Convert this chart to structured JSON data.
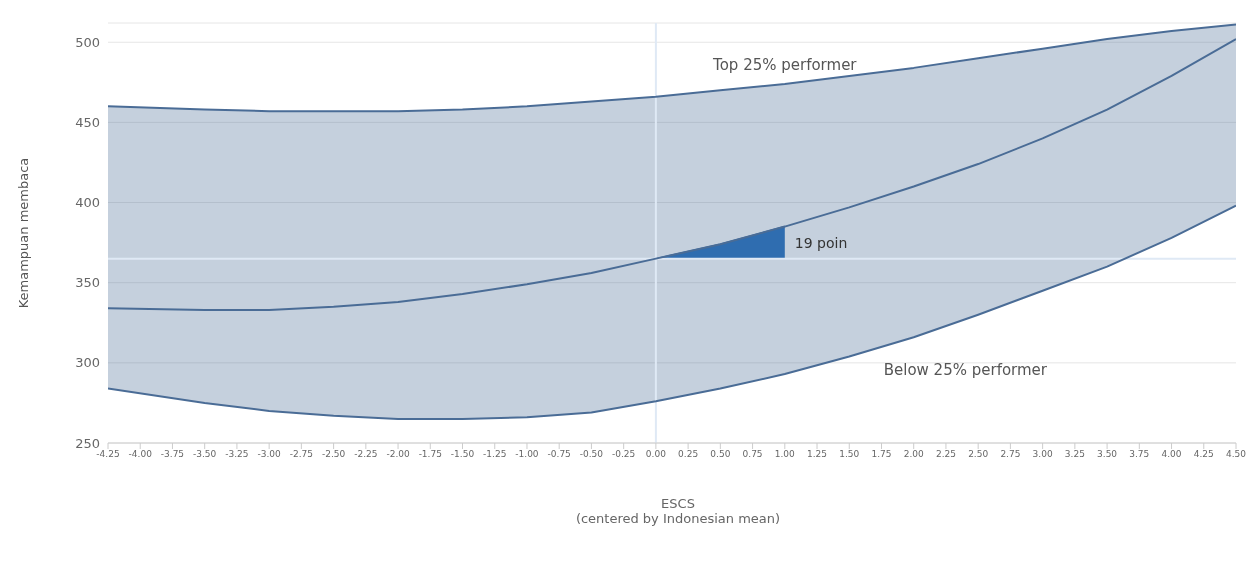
{
  "chart_data": {
    "type": "line",
    "xlabel": "ESCS\n(centered by Indonesian mean)",
    "ylabel": "Kemampuan membaca",
    "x": [
      -4.25,
      -3.5,
      -3,
      -2.5,
      -2,
      -1.5,
      -1,
      -0.5,
      0,
      0.5,
      1,
      1.5,
      2,
      2.5,
      3,
      3.5,
      4,
      4.5
    ],
    "series": [
      {
        "name": "Top 25% performer",
        "color": "#4a6c96",
        "values": [
          460,
          458,
          457,
          457,
          457,
          458,
          460,
          463,
          466,
          470,
          474,
          479,
          484,
          490,
          496,
          502,
          507,
          511
        ]
      },
      {
        "name": "Below 25% performer",
        "color": "#4a6c96",
        "values": [
          284,
          275,
          270,
          267,
          265,
          265,
          266,
          269,
          276,
          284,
          293,
          304,
          316,
          330,
          345,
          360,
          378,
          398
        ]
      },
      {
        "color": "#4a6c96",
        "values": [
          334,
          333,
          333,
          335,
          338,
          343,
          349,
          356,
          365,
          374,
          385,
          397,
          410,
          424,
          440,
          458,
          479,
          502
        ],
        "lower": [
          284,
          275,
          270,
          267,
          265,
          265,
          266,
          269,
          276,
          284,
          293,
          304,
          316,
          330,
          345,
          360,
          378,
          398
        ],
        "upper": [
          460,
          458,
          457,
          457,
          457,
          458,
          460,
          463,
          466,
          470,
          474,
          479,
          484,
          490,
          496,
          502,
          507,
          511
        ]
      },
      {
        "type": "area",
        "color": "#2f6db0",
        "x": [
          0,
          0.5,
          1
        ],
        "values": [
          365,
          374,
          385
        ]
      }
    ],
    "annotations": [
      {
        "text": "19 poin",
        "x": 1,
        "y": 375
      }
    ],
    "ref_lines": [
      {
        "axis": "y",
        "value": 365,
        "color": "#dfe9f5"
      },
      {
        "axis": "x",
        "value": 0,
        "color": "#dfe9f5"
      }
    ],
    "xlim": [
      -4.25,
      4.5
    ],
    "xticks": [
      -4.25,
      {
        "value": -4,
        "label": "-4.00"
      },
      -3.75,
      {
        "value": -3.5,
        "label": "-3.50"
      },
      -3.25,
      {
        "value": -3,
        "label": "-3.00"
      },
      -2.75,
      {
        "value": -2.5,
        "label": "-2.50"
      },
      -2.25,
      {
        "value": -2,
        "label": "-2.00"
      },
      -1.75,
      {
        "value": -1.5,
        "label": "-1.50"
      },
      -1.25,
      {
        "value": -1,
        "label": "-1.00"
      },
      -0.75,
      {
        "value": -0.5,
        "label": "-0.50"
      },
      -0.25,
      {
        "value": 0,
        "label": "0.00"
      },
      0.25,
      {
        "value": 0.5,
        "label": "0.50"
      },
      0.75,
      {
        "value": 1,
        "label": "1.00"
      },
      1.25,
      {
        "value": 1.5,
        "label": "1.50"
      },
      1.75,
      {
        "value": 2,
        "label": "2.00"
      },
      2.25,
      {
        "value": 2.5,
        "label": "2.50"
      },
      2.75,
      {
        "value": 3,
        "label": "3.00"
      },
      3.25,
      {
        "value": 3.5,
        "label": "3.50"
      },
      3.75,
      {
        "value": 4,
        "label": "4.00"
      },
      4.25,
      {
        "value": 4.5,
        "label": "4.50"
      }
    ],
    "ylim": [
      250,
      512
    ],
    "yticks": [
      250,
      300,
      350,
      400,
      450,
      500
    ],
    "grid": "y"
  }
}
